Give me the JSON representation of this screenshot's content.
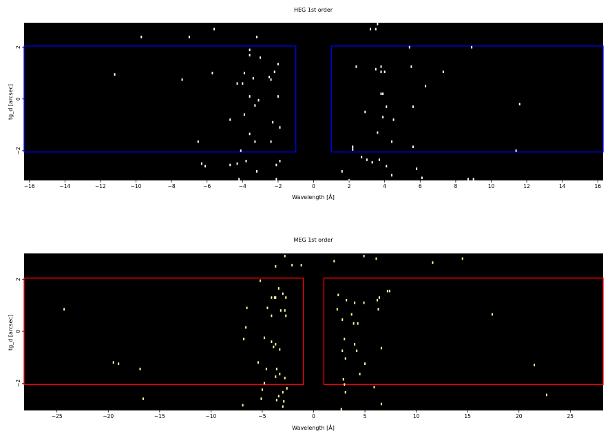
{
  "chart_data": [
    {
      "type": "scatter",
      "title": "HEG 1st order",
      "xlabel": "Wavelength [Å]",
      "ylabel": "tg_d [arcsec]",
      "xlim": [
        -16.3,
        16.3
      ],
      "ylim": [
        -3.15,
        2.95
      ],
      "xticks": [
        -16,
        -14,
        -12,
        -10,
        -8,
        -6,
        -4,
        -2,
        0,
        2,
        4,
        6,
        8,
        10,
        12,
        14,
        16
      ],
      "xticklabels": [
        "−16",
        "−14",
        "−12",
        "−10",
        "−8",
        "−6",
        "−4",
        "−2",
        "0",
        "2",
        "4",
        "6",
        "8",
        "10",
        "12",
        "14",
        "16"
      ],
      "yticks": [
        -2,
        0,
        2
      ],
      "yticklabels": [
        "−2",
        "0",
        "2"
      ],
      "background": "#000000",
      "point_color": "#ffffff",
      "region_color": "#0000ff",
      "regions": [
        {
          "name": "negative order",
          "x": [
            -16.3,
            -1.0
          ],
          "y": [
            -2.05,
            2.05
          ]
        },
        {
          "name": "positive order",
          "x": [
            1.0,
            16.3
          ],
          "y": [
            -2.05,
            2.05
          ]
        }
      ],
      "points": [
        [
          -9.7,
          2.4
        ],
        [
          -7.0,
          2.4
        ],
        [
          -5.6,
          2.7
        ],
        [
          -3.2,
          2.4
        ],
        [
          -3.6,
          1.9
        ],
        [
          -3.6,
          1.7
        ],
        [
          -3.0,
          1.6
        ],
        [
          -2.0,
          1.35
        ],
        [
          -2.2,
          1.05
        ],
        [
          -3.9,
          1.0
        ],
        [
          -5.7,
          1.0
        ],
        [
          -11.2,
          0.95
        ],
        [
          -7.4,
          0.75
        ],
        [
          -4.3,
          0.6
        ],
        [
          -4.0,
          0.6
        ],
        [
          -3.4,
          0.8
        ],
        [
          -2.4,
          0.75
        ],
        [
          -2.5,
          0.85
        ],
        [
          -3.6,
          0.1
        ],
        [
          -3.1,
          -0.05
        ],
        [
          -2.0,
          0.1
        ],
        [
          -3.3,
          -0.25
        ],
        [
          -4.7,
          -0.8
        ],
        [
          -3.9,
          -0.6
        ],
        [
          -2.3,
          -0.9
        ],
        [
          -1.9,
          -1.1
        ],
        [
          -3.6,
          -1.35
        ],
        [
          -6.5,
          -1.65
        ],
        [
          -3.3,
          -1.65
        ],
        [
          -2.4,
          -1.65
        ],
        [
          -4.1,
          -2.0
        ],
        [
          -6.3,
          -2.5
        ],
        [
          -6.1,
          -2.6
        ],
        [
          -4.7,
          -2.55
        ],
        [
          -4.3,
          -2.5
        ],
        [
          -3.8,
          -2.4
        ],
        [
          -3.2,
          -2.8
        ],
        [
          -2.1,
          -2.55
        ],
        [
          -1.9,
          -2.4
        ],
        [
          -4.2,
          -3.1
        ],
        [
          -2.1,
          -3.1
        ],
        [
          3.6,
          2.9
        ],
        [
          3.2,
          2.7
        ],
        [
          3.5,
          2.7
        ],
        [
          5.4,
          2.0
        ],
        [
          8.9,
          2.0
        ],
        [
          2.4,
          1.25
        ],
        [
          3.5,
          1.15
        ],
        [
          3.8,
          1.05
        ],
        [
          3.8,
          1.25
        ],
        [
          4.0,
          1.05
        ],
        [
          5.5,
          1.25
        ],
        [
          7.3,
          1.05
        ],
        [
          6.3,
          0.5
        ],
        [
          3.9,
          0.2
        ],
        [
          3.8,
          0.2
        ],
        [
          4.1,
          -0.3
        ],
        [
          5.6,
          -0.3
        ],
        [
          11.6,
          -0.2
        ],
        [
          2.9,
          -0.5
        ],
        [
          3.9,
          -0.7
        ],
        [
          4.5,
          -0.8
        ],
        [
          3.6,
          -1.3
        ],
        [
          4.4,
          -1.65
        ],
        [
          2.2,
          -1.85
        ],
        [
          2.2,
          -1.95
        ],
        [
          5.6,
          -1.85
        ],
        [
          11.4,
          -2.0
        ],
        [
          2.7,
          -2.25
        ],
        [
          3.0,
          -2.35
        ],
        [
          3.3,
          -2.45
        ],
        [
          3.7,
          -2.35
        ],
        [
          4.1,
          -2.6
        ],
        [
          5.8,
          -2.7
        ],
        [
          1.6,
          -2.8
        ],
        [
          4.4,
          -2.95
        ],
        [
          6.1,
          -3.05
        ],
        [
          8.7,
          -3.1
        ],
        [
          9.0,
          -3.1
        ],
        [
          2.0,
          -3.15
        ]
      ]
    },
    {
      "type": "scatter",
      "title": "MEG 1st order",
      "xlabel": "Wavelength [Å]",
      "ylabel": "tg_d [arcsec]",
      "xlim": [
        -28.2,
        28.2
      ],
      "ylim": [
        -3.05,
        3.0
      ],
      "xticks": [
        -25,
        -20,
        -15,
        -10,
        -5,
        0,
        5,
        10,
        15,
        20,
        25
      ],
      "xticklabels": [
        "−25",
        "−20",
        "−15",
        "−10",
        "−5",
        "0",
        "5",
        "10",
        "15",
        "20",
        "25"
      ],
      "yticks": [
        -2,
        0,
        2
      ],
      "yticklabels": [
        "−2",
        "0",
        "2"
      ],
      "background": "#000000",
      "point_color": "#ffff99",
      "region_color": "#ff0000",
      "regions": [
        {
          "name": "negative order",
          "x": [
            -28.2,
            -1.0
          ],
          "y": [
            -2.05,
            2.05
          ]
        },
        {
          "name": "positive order",
          "x": [
            1.0,
            28.2
          ],
          "y": [
            -2.05,
            2.05
          ]
        }
      ],
      "points": [
        [
          -2.8,
          2.9
        ],
        [
          -2.1,
          2.55
        ],
        [
          -3.7,
          2.5
        ],
        [
          -1.2,
          2.55
        ],
        [
          -5.2,
          1.95
        ],
        [
          -3.4,
          1.65
        ],
        [
          -3.0,
          1.45
        ],
        [
          -3.7,
          1.3
        ],
        [
          -4.1,
          1.3
        ],
        [
          -3.8,
          1.3
        ],
        [
          -2.7,
          1.3
        ],
        [
          -6.5,
          0.9
        ],
        [
          -4.5,
          0.9
        ],
        [
          -3.2,
          0.8
        ],
        [
          -2.8,
          0.8
        ],
        [
          -4.1,
          0.6
        ],
        [
          -2.7,
          0.6
        ],
        [
          -6.6,
          0.15
        ],
        [
          -6.8,
          -0.3
        ],
        [
          -4.8,
          -0.25
        ],
        [
          -4.1,
          -0.4
        ],
        [
          -3.7,
          -0.5
        ],
        [
          -3.9,
          -0.6
        ],
        [
          -3.3,
          -0.7
        ],
        [
          -5.4,
          -1.2
        ],
        [
          -4.6,
          -1.45
        ],
        [
          -3.6,
          -1.45
        ],
        [
          -3.3,
          -1.65
        ],
        [
          -4.8,
          -2.0
        ],
        [
          -3.7,
          -1.75
        ],
        [
          -2.8,
          -1.8
        ],
        [
          -2.6,
          -2.2
        ],
        [
          -3.0,
          -2.35
        ],
        [
          -5.0,
          -2.25
        ],
        [
          -3.4,
          -2.5
        ],
        [
          -5.1,
          -2.6
        ],
        [
          -3.6,
          -2.65
        ],
        [
          -2.9,
          -2.7
        ],
        [
          -6.9,
          -2.85
        ],
        [
          -3.0,
          -2.9
        ],
        [
          -24.3,
          0.85
        ],
        [
          -19.5,
          -1.2
        ],
        [
          -19.0,
          -1.25
        ],
        [
          -16.9,
          -1.45
        ],
        [
          -16.6,
          -2.6
        ],
        [
          2.0,
          2.7
        ],
        [
          4.9,
          2.9
        ],
        [
          6.1,
          2.8
        ],
        [
          11.6,
          2.65
        ],
        [
          14.5,
          2.8
        ],
        [
          2.4,
          1.4
        ],
        [
          3.2,
          1.2
        ],
        [
          4.0,
          1.1
        ],
        [
          4.9,
          1.1
        ],
        [
          6.2,
          1.2
        ],
        [
          6.4,
          1.3
        ],
        [
          7.2,
          1.55
        ],
        [
          7.4,
          1.55
        ],
        [
          2.3,
          0.85
        ],
        [
          6.3,
          0.85
        ],
        [
          3.7,
          0.65
        ],
        [
          2.8,
          0.45
        ],
        [
          3.9,
          0.3
        ],
        [
          4.3,
          0.3
        ],
        [
          17.4,
          0.65
        ],
        [
          3.0,
          -0.3
        ],
        [
          4.0,
          -0.5
        ],
        [
          6.6,
          -0.65
        ],
        [
          2.8,
          -0.75
        ],
        [
          4.2,
          -0.75
        ],
        [
          3.1,
          -1.05
        ],
        [
          5.0,
          -1.25
        ],
        [
          4.5,
          -1.65
        ],
        [
          2.9,
          -1.85
        ],
        [
          3.0,
          -2.05
        ],
        [
          3.1,
          -2.35
        ],
        [
          5.9,
          -2.15
        ],
        [
          21.5,
          -1.3
        ],
        [
          22.7,
          -2.45
        ],
        [
          6.6,
          -2.8
        ],
        [
          2.7,
          -3.0
        ]
      ]
    }
  ]
}
